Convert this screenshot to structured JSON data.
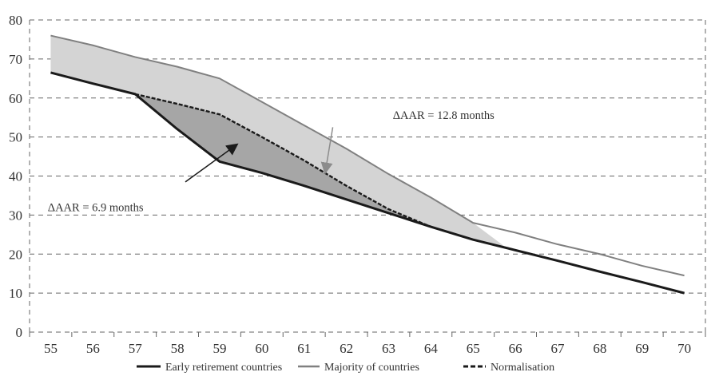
{
  "chart_data": {
    "type": "line",
    "title": "",
    "xlabel": "",
    "ylabel": "",
    "x": [
      55,
      56,
      57,
      58,
      59,
      60,
      61,
      62,
      63,
      64,
      65,
      66,
      67,
      68,
      69,
      70
    ],
    "categories": [
      "55",
      "56",
      "57",
      "58",
      "59",
      "60",
      "61",
      "62",
      "63",
      "64",
      "65",
      "66",
      "67",
      "68",
      "69",
      "70"
    ],
    "ylim": [
      0,
      80
    ],
    "yticks": [
      "0",
      "10",
      "20",
      "30",
      "40",
      "50",
      "60",
      "70",
      "80"
    ],
    "grid": true,
    "legend_position": "bottom",
    "series": [
      {
        "name": "Early retirement countries",
        "color": "#1a1a1a",
        "style": "solid",
        "x": [
          55,
          56,
          57,
          58,
          59,
          60,
          61,
          62,
          63,
          64,
          65,
          66,
          67,
          68,
          69,
          70
        ],
        "values": [
          66.5,
          63.7,
          61,
          52,
          43.7,
          40.8,
          37.5,
          34,
          30.5,
          27,
          23.7,
          21,
          18.3,
          15.5,
          12.8,
          10
        ]
      },
      {
        "name": "Majority of countries",
        "color": "#808080",
        "style": "solid",
        "x": [
          55,
          56,
          57,
          58,
          59,
          60,
          61,
          62,
          63,
          64,
          65,
          66,
          67,
          68,
          69,
          70
        ],
        "values": [
          76,
          73.5,
          70.5,
          68,
          65,
          59,
          53,
          47,
          40.5,
          34.5,
          28,
          25.5,
          22.5,
          20,
          17,
          14.5
        ]
      },
      {
        "name": "Normalisation",
        "color": "#1a1a1a",
        "style": "dashed",
        "x": [
          57,
          58,
          59,
          60,
          61,
          62,
          63,
          64
        ],
        "values": [
          61,
          58.5,
          55.8,
          50,
          44,
          37.5,
          31.5,
          27
        ]
      }
    ],
    "shaded_areas": [
      {
        "label": "ΔAAR = 12.8 months",
        "color": "#d4d4d4"
      },
      {
        "label": "ΔAAR = 6.9 months",
        "color": "#a6a6a6"
      }
    ],
    "annotations": [
      {
        "text": "ΔAAR = 12.8 months",
        "x": 63.1,
        "y": 55,
        "arrow_to": [
          61.5,
          41
        ]
      },
      {
        "text": "ΔAAR = 6.9 months",
        "x": 57.2,
        "y": 32,
        "arrow_to": [
          59.4,
          48
        ]
      }
    ]
  }
}
